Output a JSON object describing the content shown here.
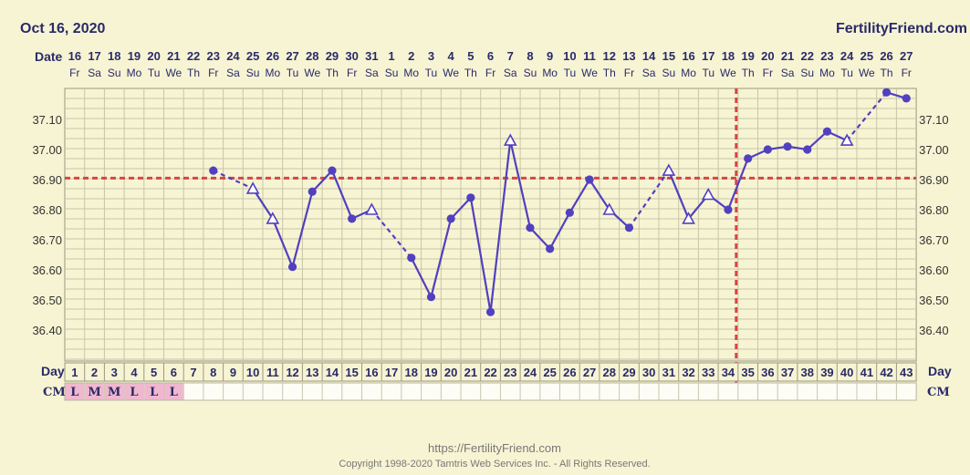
{
  "header": {
    "date_title": "Oct 16, 2020",
    "brand": "FertilityFriend.com",
    "date_label": "Date",
    "day_label": "Day",
    "cm_label": "CM"
  },
  "footer": {
    "url": "https://FertilityFriend.com",
    "copyright": "Copyright 1998-2020 Tamtris Web Services Inc. - All Rights Reserved."
  },
  "colors": {
    "background": "#f7f4d3",
    "grid": "#c8c5a8",
    "line": "#5140c0",
    "coverline": "#d64545",
    "cm_fill": "#f0b8cf",
    "text": "#2a2a6a"
  },
  "chart_data": {
    "type": "line",
    "title": "Oct 16, 2020",
    "xlabel": "Day",
    "ylabel": "",
    "ylim": [
      36.33,
      37.18
    ],
    "y_ticks": [
      "37.10",
      "37.00",
      "36.90",
      "36.80",
      "36.70",
      "36.60",
      "36.50",
      "36.40"
    ],
    "dates": [
      "16",
      "17",
      "18",
      "19",
      "20",
      "21",
      "22",
      "23",
      "24",
      "25",
      "26",
      "27",
      "28",
      "29",
      "30",
      "31",
      "1",
      "2",
      "3",
      "4",
      "5",
      "6",
      "7",
      "8",
      "9",
      "10",
      "11",
      "12",
      "13",
      "14",
      "15",
      "16",
      "17",
      "18",
      "19",
      "20",
      "21",
      "22",
      "23",
      "24",
      "25",
      "26",
      "27"
    ],
    "weekdays": [
      "Fr",
      "Sa",
      "Su",
      "Mo",
      "Tu",
      "We",
      "Th",
      "Fr",
      "Sa",
      "Su",
      "Mo",
      "Tu",
      "We",
      "Th",
      "Fr",
      "Sa",
      "Su",
      "Mo",
      "Tu",
      "We",
      "Th",
      "Fr",
      "Sa",
      "Su",
      "Mo",
      "Tu",
      "We",
      "Th",
      "Fr",
      "Sa",
      "Su",
      "Mo",
      "Tu",
      "We",
      "Th",
      "Fr",
      "Sa",
      "Su",
      "Mo",
      "Tu",
      "We",
      "Th",
      "Fr"
    ],
    "cycle_days": [
      1,
      2,
      3,
      4,
      5,
      6,
      7,
      8,
      9,
      10,
      11,
      12,
      13,
      14,
      15,
      16,
      17,
      18,
      19,
      20,
      21,
      22,
      23,
      24,
      25,
      26,
      27,
      28,
      29,
      30,
      31,
      32,
      33,
      34,
      35,
      36,
      37,
      38,
      39,
      40,
      41,
      42,
      43
    ],
    "cm": [
      "L",
      "M",
      "M",
      "L",
      "L",
      "L",
      "",
      "",
      "",
      "",
      "",
      "",
      "",
      "",
      "",
      "",
      "",
      "",
      "",
      "",
      "",
      "",
      "",
      "",
      "",
      "",
      "",
      "",
      "",
      "",
      "",
      "",
      "",
      "",
      "",
      "",
      "",
      "",
      "",
      "",
      "",
      "",
      ""
    ],
    "temps": [
      {
        "day": 8,
        "temp": 36.93,
        "marker": "dot",
        "link": "solid"
      },
      {
        "day": 10,
        "temp": 36.87,
        "marker": "triangle",
        "link": "dashed"
      },
      {
        "day": 11,
        "temp": 36.77,
        "marker": "triangle",
        "link": "solid"
      },
      {
        "day": 12,
        "temp": 36.61,
        "marker": "dot",
        "link": "solid"
      },
      {
        "day": 13,
        "temp": 36.86,
        "marker": "dot",
        "link": "solid"
      },
      {
        "day": 14,
        "temp": 36.93,
        "marker": "dot",
        "link": "solid"
      },
      {
        "day": 15,
        "temp": 36.77,
        "marker": "dot",
        "link": "solid"
      },
      {
        "day": 16,
        "temp": 36.8,
        "marker": "triangle",
        "link": "solid"
      },
      {
        "day": 18,
        "temp": 36.64,
        "marker": "dot",
        "link": "dashed"
      },
      {
        "day": 19,
        "temp": 36.51,
        "marker": "dot",
        "link": "solid"
      },
      {
        "day": 20,
        "temp": 36.77,
        "marker": "dot",
        "link": "solid"
      },
      {
        "day": 21,
        "temp": 36.84,
        "marker": "dot",
        "link": "solid"
      },
      {
        "day": 22,
        "temp": 36.46,
        "marker": "dot",
        "link": "solid"
      },
      {
        "day": 23,
        "temp": 37.03,
        "marker": "triangle",
        "link": "solid"
      },
      {
        "day": 24,
        "temp": 36.74,
        "marker": "dot",
        "link": "solid"
      },
      {
        "day": 25,
        "temp": 36.67,
        "marker": "dot",
        "link": "solid"
      },
      {
        "day": 26,
        "temp": 36.79,
        "marker": "dot",
        "link": "solid"
      },
      {
        "day": 27,
        "temp": 36.9,
        "marker": "dot",
        "link": "solid"
      },
      {
        "day": 28,
        "temp": 36.8,
        "marker": "triangle",
        "link": "solid"
      },
      {
        "day": 29,
        "temp": 36.74,
        "marker": "dot",
        "link": "solid"
      },
      {
        "day": 31,
        "temp": 36.93,
        "marker": "triangle",
        "link": "dashed"
      },
      {
        "day": 32,
        "temp": 36.77,
        "marker": "triangle",
        "link": "solid"
      },
      {
        "day": 33,
        "temp": 36.85,
        "marker": "triangle",
        "link": "solid"
      },
      {
        "day": 34,
        "temp": 36.8,
        "marker": "dot",
        "link": "solid"
      },
      {
        "day": 35,
        "temp": 36.97,
        "marker": "dot",
        "link": "solid"
      },
      {
        "day": 36,
        "temp": 37.0,
        "marker": "dot",
        "link": "solid"
      },
      {
        "day": 37,
        "temp": 37.01,
        "marker": "dot",
        "link": "solid"
      },
      {
        "day": 38,
        "temp": 37.0,
        "marker": "dot",
        "link": "solid"
      },
      {
        "day": 39,
        "temp": 37.06,
        "marker": "dot",
        "link": "solid"
      },
      {
        "day": 40,
        "temp": 37.03,
        "marker": "triangle",
        "link": "solid"
      },
      {
        "day": 42,
        "temp": 37.19,
        "marker": "dot",
        "link": "dashed"
      },
      {
        "day": 43,
        "temp": 37.17,
        "marker": "dot",
        "link": "solid"
      }
    ],
    "coverline": 36.905,
    "ovulation_day": 34,
    "grid": true,
    "legend": "none"
  }
}
